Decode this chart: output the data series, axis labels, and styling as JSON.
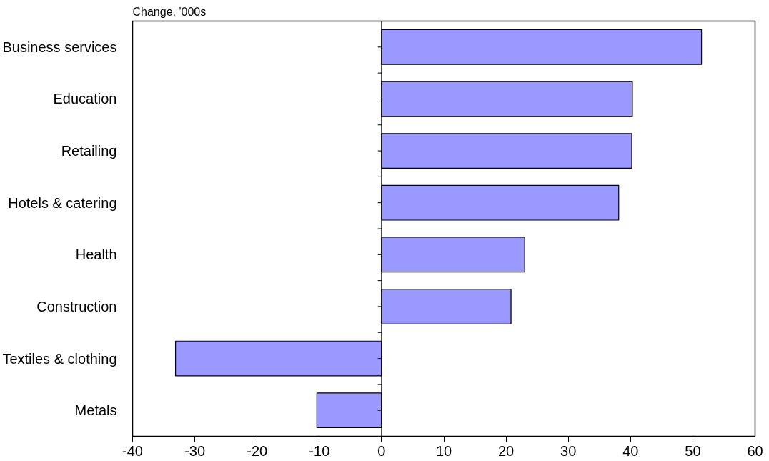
{
  "chart_data": {
    "type": "bar",
    "orientation": "horizontal",
    "title": "Change, '000s",
    "categories": [
      "Business services",
      "Education",
      "Retailing",
      "Hotels & catering",
      "Health",
      "Construction",
      "Textiles & clothing",
      "Metals"
    ],
    "values": [
      51.4,
      40.3,
      40.2,
      38.1,
      23.0,
      20.8,
      -33.1,
      -10.4
    ],
    "color": "#9999ff",
    "xlim": [
      -40,
      60
    ],
    "xticks": [
      -40,
      -30,
      -20,
      -10,
      0,
      10,
      20,
      30,
      40,
      50,
      60
    ]
  }
}
